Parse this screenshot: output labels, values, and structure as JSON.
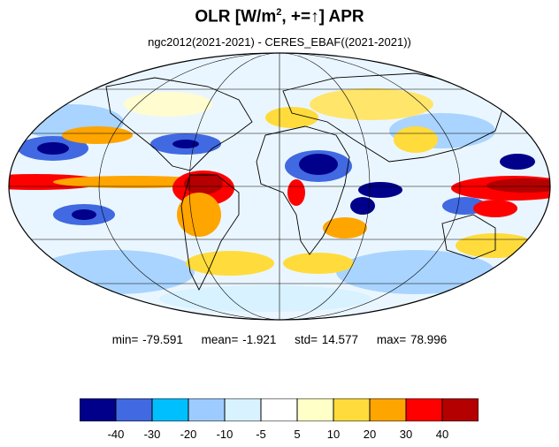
{
  "title": {
    "main": "OLR [W/m",
    "sup": "2",
    "rest": ", +=↑] APR"
  },
  "subtitle": "ngc2012(2021-2021) - CERES_EBAF((2021-2021))",
  "stats": {
    "min": "min= -79.591",
    "mean": "mean= -1.921",
    "std": "std= 14.577",
    "max": "max= 78.996"
  },
  "colorbar": {
    "colors": [
      "#00008b",
      "#4169e1",
      "#00bfff",
      "#9ecbff",
      "#d8f2ff",
      "#ffffff",
      "#ffffc8",
      "#ffdb3c",
      "#ffa500",
      "#ff0000",
      "#b40000"
    ],
    "labels": [
      "-40",
      "-30",
      "-20",
      "-10",
      "-5",
      "5",
      "10",
      "20",
      "30",
      "40"
    ]
  },
  "map": {
    "projection": "mollweide",
    "grid": true,
    "anomaly_patches": [
      {
        "region": "equatorial-east-pacific",
        "color": "#ff0000"
      },
      {
        "region": "maritime-continent",
        "color": "#ff0000"
      },
      {
        "region": "amazon",
        "color": "#ff0000"
      },
      {
        "region": "sahara",
        "color": "#00008b"
      },
      {
        "region": "north-pacific",
        "color": "#00008b"
      },
      {
        "region": "south-atlantic",
        "color": "#ffa500"
      }
    ]
  }
}
